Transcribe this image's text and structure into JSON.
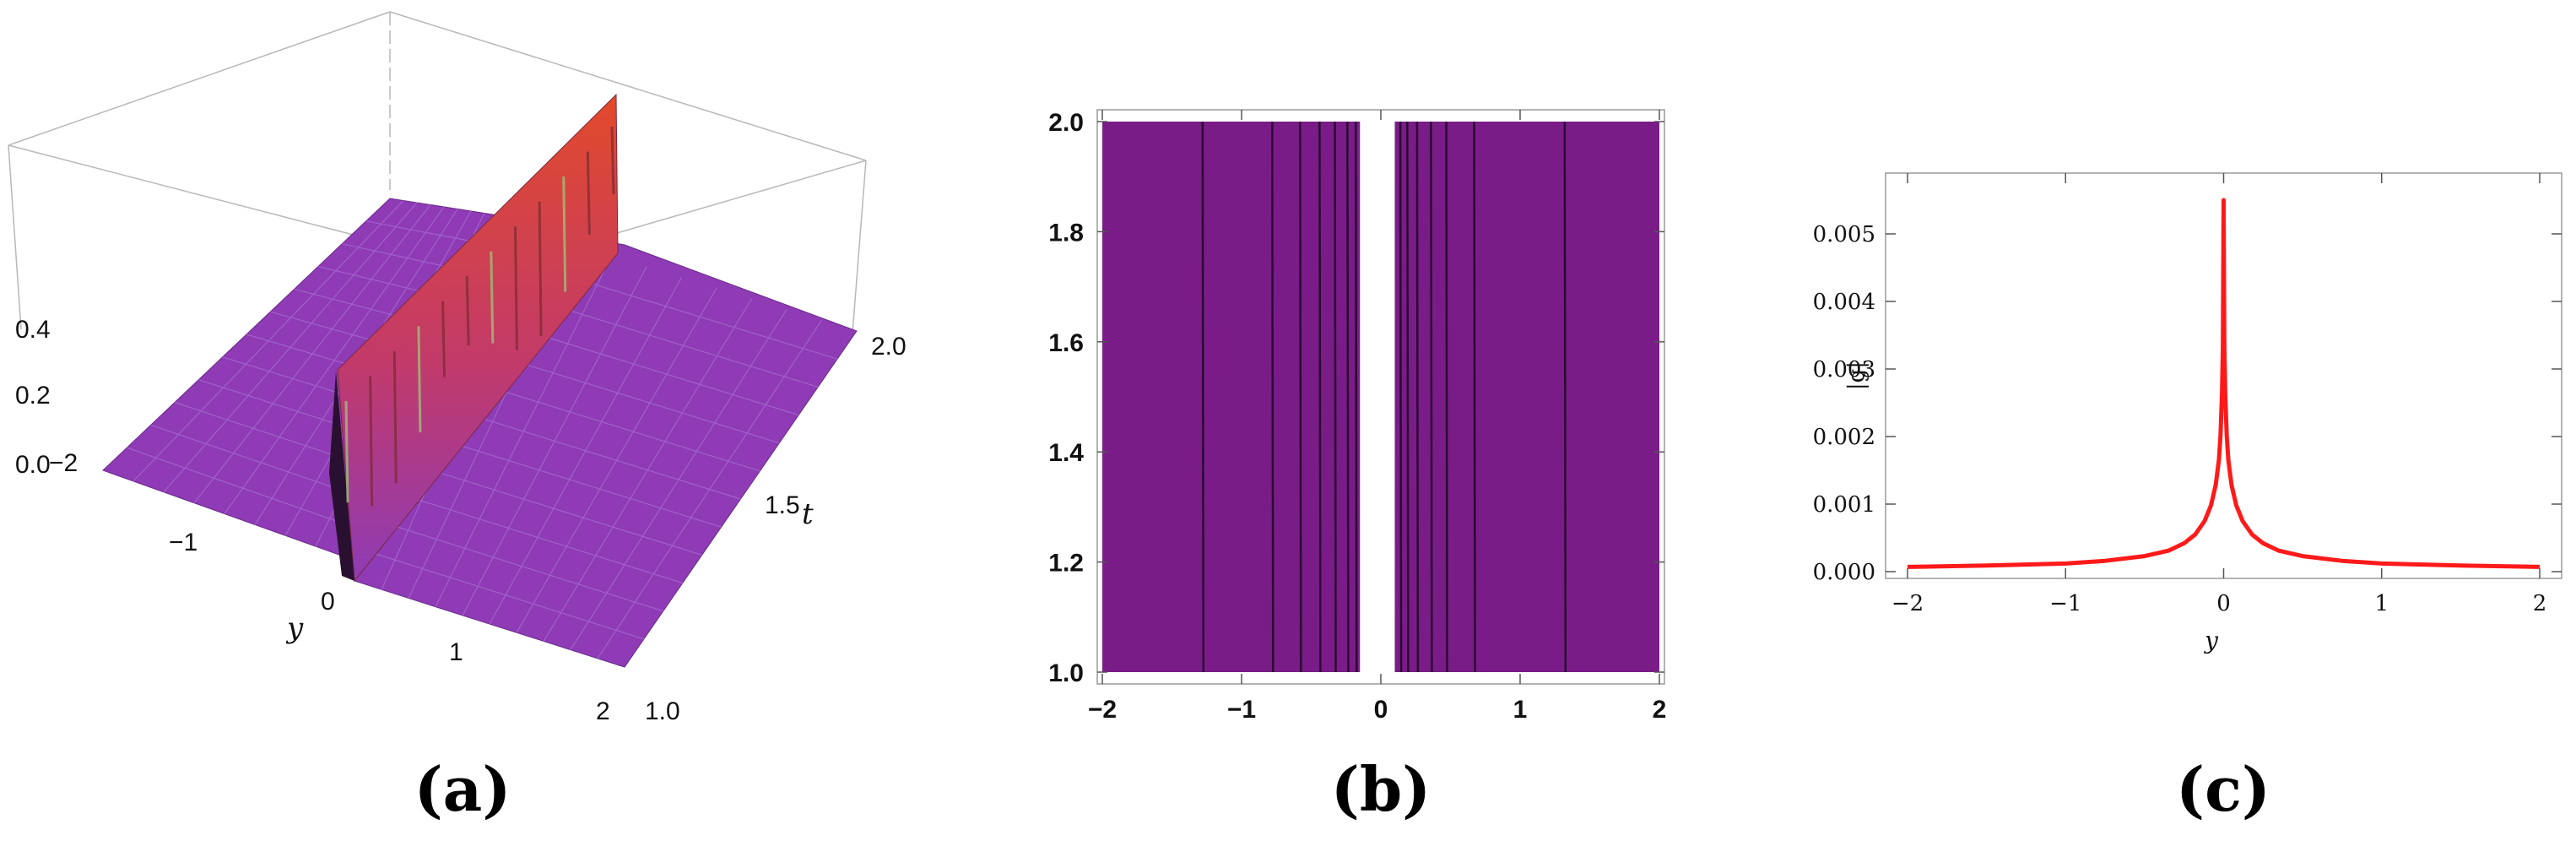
{
  "chart_data": [
    {
      "panel": "(a)",
      "type": "surface",
      "x_axis": {
        "label": "y",
        "ticks": [
          "−2",
          "−1",
          "0",
          "1",
          "2"
        ],
        "range": [
          -2,
          2
        ]
      },
      "y_axis": {
        "label": "t",
        "ticks": [
          "1.0",
          "1.5",
          "2.0"
        ],
        "range": [
          1,
          2
        ]
      },
      "z_axis": {
        "ticks": [
          "0.0",
          "0.2",
          "0.4"
        ],
        "range": [
          0,
          0.45
        ]
      },
      "surface_color": "#8e3bb5",
      "ridge_colors": [
        "#e24a2a",
        "#c23a6a",
        "#8e3bb5"
      ],
      "ridge_y": 0
    },
    {
      "panel": "(b)",
      "type": "contour",
      "x_ticks": [
        "−2",
        "−1",
        "0",
        "1",
        "2"
      ],
      "y_ticks": [
        "1.0",
        "1.2",
        "1.4",
        "1.6",
        "1.8",
        "2.0"
      ],
      "x_range": [
        -2,
        2
      ],
      "y_range": [
        1,
        2
      ],
      "fill_color": "#7a1c88",
      "gap": [
        -0.15,
        0.1
      ],
      "contour_x": [
        -1.28,
        -0.78,
        -0.58,
        -0.44,
        -0.33,
        -0.24,
        -0.18,
        0.14,
        0.19,
        0.26,
        0.36,
        0.47,
        0.67,
        1.32
      ]
    },
    {
      "panel": "(c)",
      "type": "line",
      "xlabel": "y",
      "ylabel": "|g|",
      "x_ticks": [
        "−2",
        "−1",
        "0",
        "1",
        "2"
      ],
      "y_ticks": [
        "0.000",
        "0.001",
        "0.002",
        "0.003",
        "0.004",
        "0.005"
      ],
      "xlim": [
        -2,
        2
      ],
      "ylim": [
        -0.0001,
        0.0059
      ],
      "series": [
        {
          "color": "#ff1a1a",
          "x": [
            -2,
            -1.5,
            -1,
            -0.75,
            -0.5,
            -0.35,
            -0.25,
            -0.18,
            -0.12,
            -0.08,
            -0.05,
            -0.03,
            -0.02,
            -0.01,
            -0.005,
            0,
            0.005,
            0.01,
            0.02,
            0.03,
            0.05,
            0.08,
            0.12,
            0.18,
            0.25,
            0.35,
            0.5,
            0.75,
            1,
            1.5,
            2
          ],
          "y": [
            7e-05,
            9e-05,
            0.00012,
            0.00016,
            0.00023,
            0.00031,
            0.00042,
            0.00055,
            0.00075,
            0.00098,
            0.00128,
            0.00165,
            0.00201,
            0.00265,
            0.0033,
            0.0055,
            0.0033,
            0.00265,
            0.00201,
            0.00165,
            0.00128,
            0.00098,
            0.00075,
            0.00055,
            0.00042,
            0.00031,
            0.00023,
            0.00016,
            0.00012,
            9e-05,
            7e-05
          ]
        }
      ]
    }
  ],
  "labels": {
    "a": "(a)",
    "b": "(b)",
    "c": "(c)"
  }
}
